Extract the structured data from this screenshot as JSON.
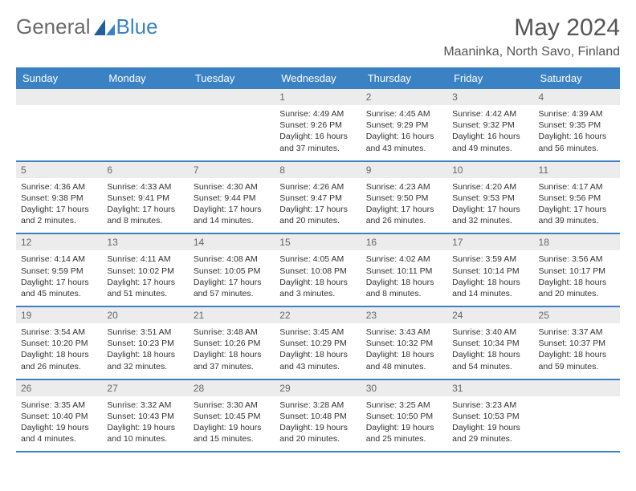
{
  "logo": {
    "text1": "General",
    "text2": "Blue"
  },
  "title": "May 2024",
  "location": "Maaninka, North Savo, Finland",
  "colors": {
    "header_bg": "#3b82c4",
    "header_fg": "#ffffff",
    "daynum_bg": "#ececec",
    "daynum_fg": "#666666",
    "rule": "#3b82c4",
    "logo_gray": "#6b6b6b",
    "logo_blue": "#3b82c4"
  },
  "typography": {
    "title_fontsize": 30,
    "location_fontsize": 16,
    "header_fontsize": 13,
    "daynum_fontsize": 12,
    "body_fontsize": 10.5
  },
  "days_of_week": [
    "Sunday",
    "Monday",
    "Tuesday",
    "Wednesday",
    "Thursday",
    "Friday",
    "Saturday"
  ],
  "weeks": [
    [
      null,
      null,
      null,
      {
        "n": "1",
        "sunrise": "4:49 AM",
        "sunset": "9:26 PM",
        "daylight": "16 hours and 37 minutes."
      },
      {
        "n": "2",
        "sunrise": "4:45 AM",
        "sunset": "9:29 PM",
        "daylight": "16 hours and 43 minutes."
      },
      {
        "n": "3",
        "sunrise": "4:42 AM",
        "sunset": "9:32 PM",
        "daylight": "16 hours and 49 minutes."
      },
      {
        "n": "4",
        "sunrise": "4:39 AM",
        "sunset": "9:35 PM",
        "daylight": "16 hours and 56 minutes."
      }
    ],
    [
      {
        "n": "5",
        "sunrise": "4:36 AM",
        "sunset": "9:38 PM",
        "daylight": "17 hours and 2 minutes."
      },
      {
        "n": "6",
        "sunrise": "4:33 AM",
        "sunset": "9:41 PM",
        "daylight": "17 hours and 8 minutes."
      },
      {
        "n": "7",
        "sunrise": "4:30 AM",
        "sunset": "9:44 PM",
        "daylight": "17 hours and 14 minutes."
      },
      {
        "n": "8",
        "sunrise": "4:26 AM",
        "sunset": "9:47 PM",
        "daylight": "17 hours and 20 minutes."
      },
      {
        "n": "9",
        "sunrise": "4:23 AM",
        "sunset": "9:50 PM",
        "daylight": "17 hours and 26 minutes."
      },
      {
        "n": "10",
        "sunrise": "4:20 AM",
        "sunset": "9:53 PM",
        "daylight": "17 hours and 32 minutes."
      },
      {
        "n": "11",
        "sunrise": "4:17 AM",
        "sunset": "9:56 PM",
        "daylight": "17 hours and 39 minutes."
      }
    ],
    [
      {
        "n": "12",
        "sunrise": "4:14 AM",
        "sunset": "9:59 PM",
        "daylight": "17 hours and 45 minutes."
      },
      {
        "n": "13",
        "sunrise": "4:11 AM",
        "sunset": "10:02 PM",
        "daylight": "17 hours and 51 minutes."
      },
      {
        "n": "14",
        "sunrise": "4:08 AM",
        "sunset": "10:05 PM",
        "daylight": "17 hours and 57 minutes."
      },
      {
        "n": "15",
        "sunrise": "4:05 AM",
        "sunset": "10:08 PM",
        "daylight": "18 hours and 3 minutes."
      },
      {
        "n": "16",
        "sunrise": "4:02 AM",
        "sunset": "10:11 PM",
        "daylight": "18 hours and 8 minutes."
      },
      {
        "n": "17",
        "sunrise": "3:59 AM",
        "sunset": "10:14 PM",
        "daylight": "18 hours and 14 minutes."
      },
      {
        "n": "18",
        "sunrise": "3:56 AM",
        "sunset": "10:17 PM",
        "daylight": "18 hours and 20 minutes."
      }
    ],
    [
      {
        "n": "19",
        "sunrise": "3:54 AM",
        "sunset": "10:20 PM",
        "daylight": "18 hours and 26 minutes."
      },
      {
        "n": "20",
        "sunrise": "3:51 AM",
        "sunset": "10:23 PM",
        "daylight": "18 hours and 32 minutes."
      },
      {
        "n": "21",
        "sunrise": "3:48 AM",
        "sunset": "10:26 PM",
        "daylight": "18 hours and 37 minutes."
      },
      {
        "n": "22",
        "sunrise": "3:45 AM",
        "sunset": "10:29 PM",
        "daylight": "18 hours and 43 minutes."
      },
      {
        "n": "23",
        "sunrise": "3:43 AM",
        "sunset": "10:32 PM",
        "daylight": "18 hours and 48 minutes."
      },
      {
        "n": "24",
        "sunrise": "3:40 AM",
        "sunset": "10:34 PM",
        "daylight": "18 hours and 54 minutes."
      },
      {
        "n": "25",
        "sunrise": "3:37 AM",
        "sunset": "10:37 PM",
        "daylight": "18 hours and 59 minutes."
      }
    ],
    [
      {
        "n": "26",
        "sunrise": "3:35 AM",
        "sunset": "10:40 PM",
        "daylight": "19 hours and 4 minutes."
      },
      {
        "n": "27",
        "sunrise": "3:32 AM",
        "sunset": "10:43 PM",
        "daylight": "19 hours and 10 minutes."
      },
      {
        "n": "28",
        "sunrise": "3:30 AM",
        "sunset": "10:45 PM",
        "daylight": "19 hours and 15 minutes."
      },
      {
        "n": "29",
        "sunrise": "3:28 AM",
        "sunset": "10:48 PM",
        "daylight": "19 hours and 20 minutes."
      },
      {
        "n": "30",
        "sunrise": "3:25 AM",
        "sunset": "10:50 PM",
        "daylight": "19 hours and 25 minutes."
      },
      {
        "n": "31",
        "sunrise": "3:23 AM",
        "sunset": "10:53 PM",
        "daylight": "19 hours and 29 minutes."
      },
      null
    ]
  ],
  "labels": {
    "sunrise": "Sunrise:",
    "sunset": "Sunset:",
    "daylight": "Daylight:"
  }
}
